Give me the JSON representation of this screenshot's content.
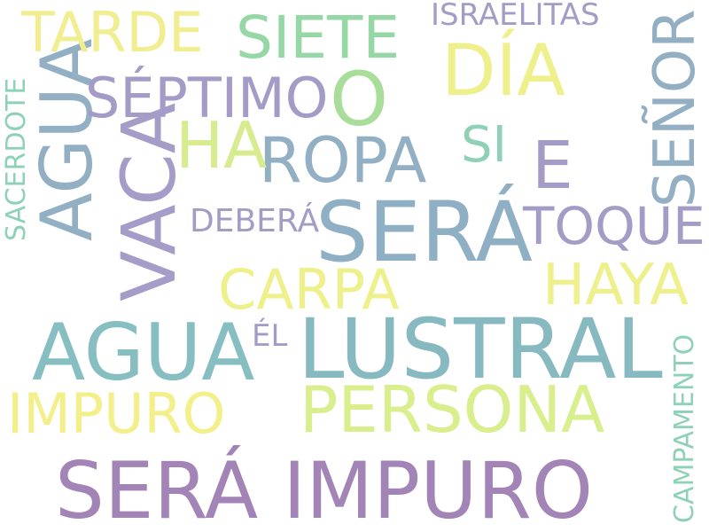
{
  "word_cloud": {
    "colors": {
      "yellow": "#EEF08B",
      "light_yellow": "#F0EE90",
      "lime": "#D6EC8F",
      "green": "#A9DE9A",
      "mint": "#8ED1B6",
      "teal": "#87B9C1",
      "steel": "#93AFC4",
      "lavender": "#A49CC6",
      "purple": "#A384B6"
    },
    "words": [
      {
        "text": "SERÁ IMPURO",
        "color": "#A384B6"
      },
      {
        "text": "LUSTRAL",
        "color": "#87B9C1"
      },
      {
        "text": "AGUA",
        "color": "#87BEC1"
      },
      {
        "text": "SERÁ",
        "color": "#8FAFC4"
      },
      {
        "text": "PERSONA",
        "color": "#D9EE8C"
      },
      {
        "text": "VACA",
        "color": "#A59CC8"
      },
      {
        "text": "DÍA",
        "color": "#EEF08B"
      },
      {
        "text": "AGUA",
        "color": "#93AFC4"
      },
      {
        "text": "ROPA",
        "color": "#93AFC4"
      },
      {
        "text": "SIETE",
        "color": "#95D8A6"
      },
      {
        "text": "SÉPTIMO",
        "color": "#A49CC6"
      },
      {
        "text": "SEÑOR",
        "color": "#93AFC4"
      },
      {
        "text": "TARDE",
        "color": "#F0EE90"
      },
      {
        "text": "CARPA",
        "color": "#EEF08B"
      },
      {
        "text": "HAYA",
        "color": "#EEF08B"
      },
      {
        "text": "IMPURO",
        "color": "#F3F08C"
      },
      {
        "text": "TOQUE",
        "color": "#A49CC6"
      },
      {
        "text": "HA",
        "color": "#D6EC8F"
      },
      {
        "text": "O",
        "color": "#A9DE9A"
      },
      {
        "text": "E",
        "color": "#A49CC6"
      },
      {
        "text": "SI",
        "color": "#8ED1B6"
      },
      {
        "text": "ISRAELITAS",
        "color": "#A49CC6"
      },
      {
        "text": "DEBERÁ",
        "color": "#A49CC6"
      },
      {
        "text": "ÉL",
        "color": "#A49CC6"
      },
      {
        "text": "CAMPAMENTO",
        "color": "#8ED1B6"
      },
      {
        "text": "SACERDOTE",
        "color": "#8ED1B6"
      }
    ]
  }
}
